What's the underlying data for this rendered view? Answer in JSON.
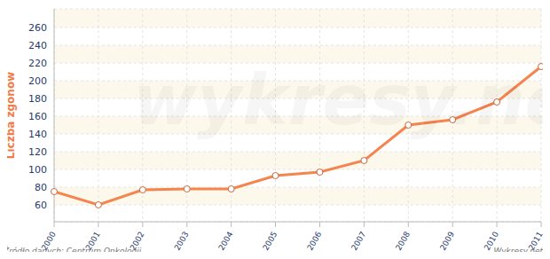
{
  "chart_data": {
    "type": "line",
    "y_label": "Liczba zgonów",
    "source": "Źródło danych: Centrum Onkologii",
    "credit": "Wykresy.net",
    "watermark": "wykresy.net",
    "x": [
      2000,
      2001,
      2002,
      2003,
      2004,
      2005,
      2006,
      2007,
      2008,
      2009,
      2010,
      2011
    ],
    "xlim": [
      2000,
      2011
    ],
    "xticks": [
      2000,
      2001,
      2002,
      2003,
      2004,
      2005,
      2006,
      2007,
      2008,
      2009,
      2010,
      2011
    ],
    "values": [
      75,
      60,
      77,
      78,
      78,
      93,
      97,
      110,
      150,
      156,
      176,
      216
    ],
    "color": "#f5844f",
    "marker": "circle",
    "ylim": [
      41,
      281
    ],
    "yticks": [
      60,
      80,
      100,
      120,
      140,
      160,
      180,
      200,
      220,
      240,
      260
    ],
    "grid": true
  }
}
